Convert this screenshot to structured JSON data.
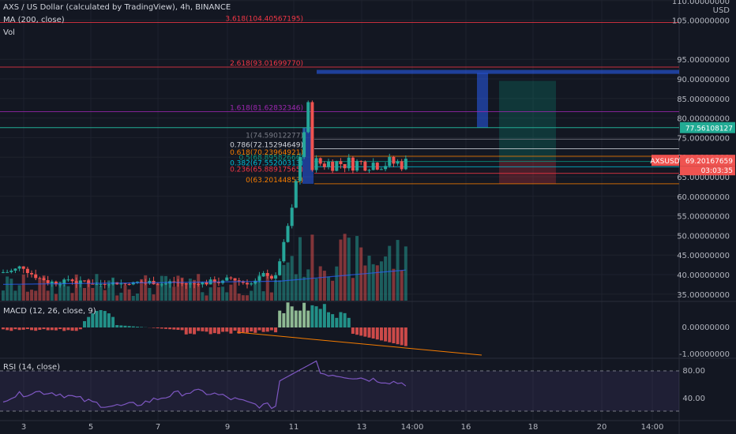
{
  "legend": {
    "title": "AXS / US Dollar (calculated by TradingView), 4h, BINANCE",
    "ma": "MA (200, close)",
    "vol": "Vol"
  },
  "macd_label": "MACD (12, 26, close, 9)",
  "rsi_label": "RSI (14, close)",
  "currency": "USD",
  "price_ticks": [
    "110.00000000",
    "105.00000000",
    "95.00000000",
    "90.00000000",
    "85.00000000",
    "80.00000000",
    "75.00000000",
    "70.00000000",
    "65.00000000",
    "60.00000000",
    "55.00000000",
    "50.00000000",
    "45.00000000",
    "40.00000000",
    "35.00000000"
  ],
  "price_tick_values": [
    110,
    105,
    95,
    90,
    85,
    80,
    75,
    70,
    65,
    60,
    55,
    50,
    45,
    40,
    35
  ],
  "macd_ticks": [
    "0.00000000",
    "-1.00000000"
  ],
  "rsi_ticks": [
    "80.00",
    "40.00"
  ],
  "x_ticks": [
    "3",
    "5",
    "7",
    "9",
    "11",
    "13",
    "14:00",
    "16",
    "18",
    "20",
    "14:00"
  ],
  "tags": {
    "top_line": "77.56108127",
    "symbol": "AXSUSD",
    "last_price": "69.20167659",
    "countdown": "03:03:35"
  },
  "fib": [
    {
      "label": "3.618(104.40567195)",
      "value": 104.40567195,
      "color": "#f23645"
    },
    {
      "label": "2.618(93.01699770)",
      "value": 93.0169977,
      "color": "#f23645"
    },
    {
      "label": "1.618(81.62832346)",
      "value": 81.62832346,
      "color": "#9c27b0"
    },
    {
      "label": "1(74.59012277)",
      "value": 74.59012277,
      "color": "#787b86"
    },
    {
      "label": "0.786(72.15294649)",
      "value": 72.15294649,
      "color": "#d1d4dc"
    },
    {
      "label": "0.618(70.23964921)",
      "value": 70.23964921,
      "color": "#f57c00"
    },
    {
      "label": "0.5(68.89582666)",
      "value": 68.89582666,
      "color": "#089981"
    },
    {
      "label": "0.382(67.55200313)",
      "value": 67.55200313,
      "color": "#00bcd4"
    },
    {
      "label": "0.236(65.88917565)",
      "value": 65.88917565,
      "color": "#f23645"
    },
    {
      "label": "0(63.20144853)",
      "value": 63.20144853,
      "color": "#f57c00"
    }
  ],
  "colors": {
    "bg": "#131722",
    "grid": "#1e222d",
    "text": "#b2b5be",
    "up": "#26a69a",
    "down": "#ef5350",
    "teal_line": "#22ab94",
    "blue_box": "#2962ff",
    "rsi": "#7e57c2"
  }
}
